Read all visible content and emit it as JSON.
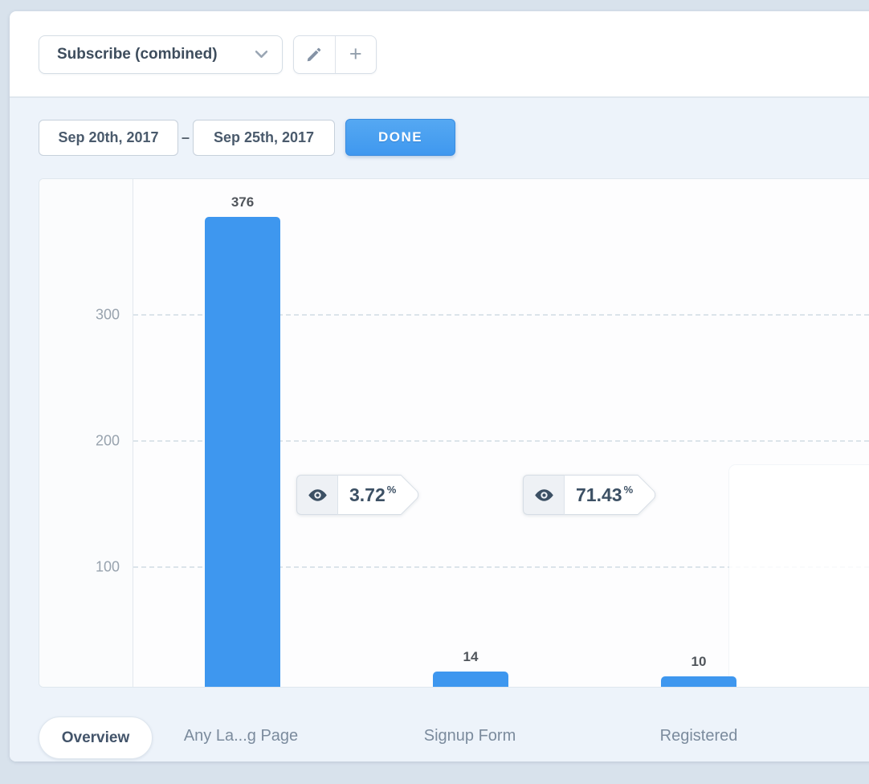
{
  "header": {
    "funnel_selector_value": "Subscribe (combined)",
    "add_label": "+"
  },
  "date_range": {
    "start": "Sep 20th, 2017",
    "separator": "–",
    "end": "Sep 25th, 2017",
    "done_label": "DONE"
  },
  "chart_data": {
    "type": "bar",
    "title": "",
    "categories": [
      "Any La...g Page",
      "Signup Form",
      "Registered"
    ],
    "values": [
      376,
      14,
      10
    ],
    "value_labels": [
      "376",
      "14",
      "10"
    ],
    "conversion_badges": [
      {
        "value": "3.72",
        "unit": "%"
      },
      {
        "value": "71.43",
        "unit": "%"
      }
    ],
    "yticks": {
      "t300": "300",
      "t200": "200",
      "t100": "100"
    },
    "ylim": [
      0,
      405
    ],
    "bar_color": "#3e97ef",
    "grid": "horizontal-dashed",
    "legend": "none"
  },
  "footer": {
    "overview_label": "Overview"
  },
  "colors": {
    "page_bg": "#d8e2ec",
    "card_body_bg": "#edf3fa",
    "bar_blue": "#3e97ef",
    "done_blue": "#47a0f0",
    "badge_text": "#3c5064"
  }
}
